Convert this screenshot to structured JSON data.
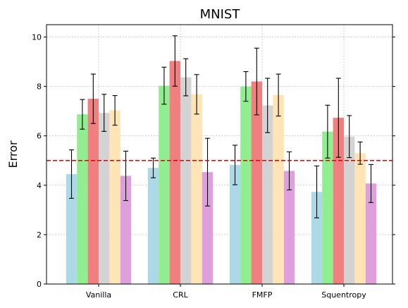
{
  "chart_data": {
    "type": "bar",
    "title": "MNIST",
    "xlabel": "",
    "ylabel": "Error",
    "ylim": [
      0,
      10.5
    ],
    "yticks": [
      0,
      2,
      4,
      6,
      8,
      10
    ],
    "grid": true,
    "categories": [
      "Vanilla",
      "CRL",
      "FMFP",
      "Squentropy"
    ],
    "reference_line": {
      "value": 5.0,
      "color": "#e00000",
      "style": "dashed"
    },
    "series": [
      {
        "color": "#add8e6",
        "values": [
          4.45,
          4.7,
          4.82,
          3.73
        ],
        "errors": [
          0.98,
          0.4,
          0.8,
          1.05
        ]
      },
      {
        "color": "#90ee90",
        "values": [
          6.87,
          8.03,
          8.0,
          6.17
        ],
        "errors": [
          0.6,
          0.75,
          0.6,
          1.07
        ]
      },
      {
        "color": "#f08080",
        "values": [
          7.5,
          9.03,
          8.2,
          6.73
        ],
        "errors": [
          1.0,
          1.02,
          1.35,
          1.6
        ]
      },
      {
        "color": "#d3d3d3",
        "values": [
          6.93,
          8.37,
          7.23,
          5.97
        ],
        "errors": [
          0.75,
          0.75,
          1.1,
          0.85
        ]
      },
      {
        "color": "#ffe4b5",
        "values": [
          7.03,
          7.68,
          7.65,
          5.3
        ],
        "errors": [
          0.6,
          0.8,
          0.85,
          0.45
        ]
      },
      {
        "color": "#dda0dd",
        "values": [
          4.38,
          4.53,
          4.58,
          4.07
        ],
        "errors": [
          1.0,
          1.37,
          0.77,
          0.77
        ]
      }
    ]
  }
}
